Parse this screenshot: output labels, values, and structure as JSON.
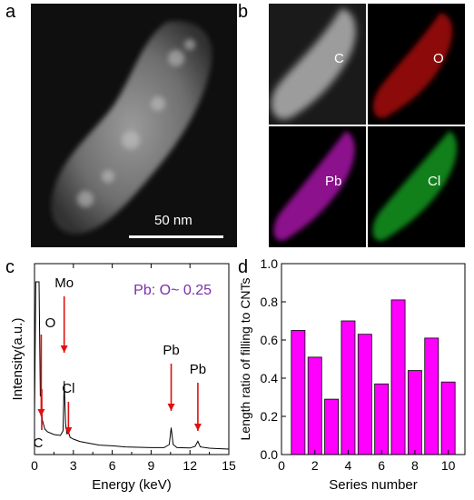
{
  "panels": {
    "a": {
      "label": "a",
      "scalebar_text": "50 nm"
    },
    "b": {
      "label": "b",
      "maps": [
        {
          "element": "C",
          "color": "#bfbfbf"
        },
        {
          "element": "O",
          "color": "#e0141a"
        },
        {
          "element": "Pb",
          "color": "#d21fd2"
        },
        {
          "element": "Cl",
          "color": "#22c22a"
        }
      ]
    },
    "c": {
      "label": "c"
    },
    "d": {
      "label": "d"
    }
  },
  "chart_data": [
    {
      "type": "line",
      "title": "",
      "annotation": "Pb: O~ 0.25",
      "annotation_color": "#7a2fa8",
      "xlabel": "Energy (keV)",
      "ylabel": "Intensity(a.u.)",
      "xlim": [
        0,
        15
      ],
      "xticks": [
        0,
        3,
        6,
        9,
        12,
        15
      ],
      "yticks": [],
      "peaks": [
        {
          "label": "C",
          "energy": 0.28
        },
        {
          "label": "O",
          "energy": 0.52
        },
        {
          "label": "Mo",
          "energy": 2.29
        },
        {
          "label": "Cl",
          "energy": 2.62
        },
        {
          "label": "Pb",
          "energy": 10.55
        },
        {
          "label": "Pb",
          "energy": 12.61
        }
      ],
      "spectrum": {
        "x": [
          0.0,
          0.1,
          0.2,
          0.28,
          0.35,
          0.45,
          0.52,
          0.6,
          0.8,
          1.0,
          1.5,
          2.0,
          2.2,
          2.29,
          2.4,
          2.5,
          2.62,
          2.75,
          3.0,
          3.5,
          4.0,
          5.0,
          6.0,
          7.0,
          8.0,
          9.0,
          10.0,
          10.4,
          10.55,
          10.7,
          11.0,
          12.0,
          12.4,
          12.61,
          12.8,
          13.5,
          14.0,
          15.0
        ],
        "y": [
          2.0,
          9.5,
          9.5,
          9.5,
          9.5,
          3.2,
          3.3,
          1.9,
          1.4,
          1.25,
          1.1,
          1.05,
          1.3,
          4.05,
          1.7,
          1.15,
          1.25,
          0.95,
          0.85,
          0.72,
          0.65,
          0.52,
          0.48,
          0.42,
          0.4,
          0.38,
          0.38,
          0.55,
          1.48,
          0.55,
          0.38,
          0.36,
          0.45,
          0.73,
          0.42,
          0.35,
          0.33,
          0.3
        ]
      }
    },
    {
      "type": "bar",
      "title": "",
      "xlabel": "Series number",
      "ylabel": "Length ratio of filling to CNTs",
      "x": [
        1,
        2,
        3,
        4,
        5,
        6,
        7,
        8,
        9,
        10
      ],
      "values": [
        0.65,
        0.51,
        0.29,
        0.7,
        0.63,
        0.37,
        0.81,
        0.44,
        0.61,
        0.38
      ],
      "xlim": [
        0,
        11
      ],
      "ylim": [
        0,
        1.0
      ],
      "xticks": [
        0,
        2,
        4,
        6,
        8,
        10
      ],
      "yticks": [
        0.0,
        0.2,
        0.4,
        0.6,
        0.8,
        1.0
      ],
      "bar_color": "#ff00ff"
    }
  ]
}
